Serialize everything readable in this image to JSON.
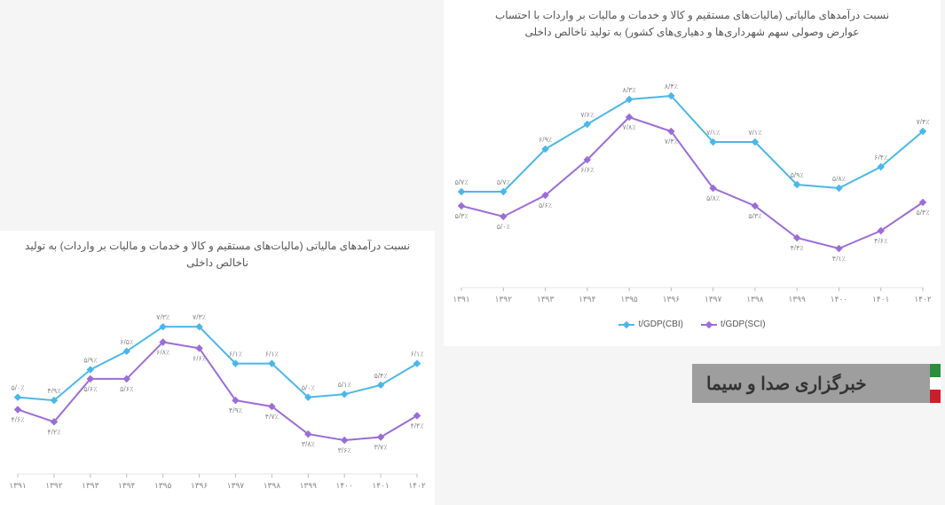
{
  "chart_right": {
    "title_line1": "نسبت درآمدهای مالیاتی (مالیات‌های مستقیم و کالا و خدمات و مالیات بر واردات با احتساب",
    "title_line2": "عوارض وصولی سهم شهرداری‌ها و دهیاری‌های کشور) به تولید ناخالص داخلی",
    "type": "line",
    "categories": [
      "۱۳۹۱",
      "۱۳۹۲",
      "۱۳۹۳",
      "۱۳۹۴",
      "۱۳۹۵",
      "۱۳۹۶",
      "۱۳۹۷",
      "۱۳۹۸",
      "۱۳۹۹",
      "۱۴۰۰",
      "۱۴۰۱",
      "۱۴۰۲"
    ],
    "series": [
      {
        "name": "t/GDP(CBI)",
        "color": "#4bb7e8",
        "values": [
          5.7,
          5.7,
          6.9,
          7.6,
          8.3,
          8.4,
          7.1,
          7.1,
          5.9,
          5.8,
          6.4,
          7.4
        ],
        "labels": [
          "۵/۷٪",
          "۵/۷٪",
          "۶/۹٪",
          "۷/۶٪",
          "۸/۳٪",
          "۸/۴٪",
          "۷/۱٪",
          "۷/۱٪",
          "۵/۹٪",
          "۵/۸٪",
          "۶/۴٪",
          "۷/۴٪"
        ]
      },
      {
        "name": "t/GDP(SCI)",
        "color": "#9b6dd7",
        "values": [
          5.3,
          5.0,
          5.6,
          6.6,
          7.8,
          7.4,
          5.8,
          5.3,
          4.4,
          4.1,
          4.6,
          5.4
        ],
        "labels": [
          "۵/۳٪",
          "۵/۰٪",
          "۵/۶٪",
          "۶/۶٪",
          "۷/۸٪",
          "۷/۴٪",
          "۵/۸٪",
          "۵/۳٪",
          "۴/۴٪",
          "۴/۱٪",
          "۴/۶٪",
          "۵/۴٪"
        ]
      }
    ],
    "ylim": [
      3,
      9
    ],
    "legend": [
      {
        "label": "t/GDP(CBI)",
        "color": "#4bb7e8"
      },
      {
        "label": "t/GDP(SCI)",
        "color": "#9b6dd7"
      }
    ],
    "background": "#ffffff",
    "grid_color": "#e6e6e6"
  },
  "chart_left": {
    "title_line1": "نسبت درآمدهای مالیاتی (مالیات‌های مستقیم و کالا و خدمات و مالیات بر واردات) به تولید",
    "title_line2": "ناخالص داخلی",
    "type": "line",
    "categories": [
      "۱۳۹۱",
      "۱۳۹۲",
      "۱۳۹۳",
      "۱۳۹۴",
      "۱۳۹۵",
      "۱۳۹۶",
      "۱۳۹۷",
      "۱۳۹۸",
      "۱۳۹۹",
      "۱۴۰۰",
      "۱۴۰۱",
      "۱۴۰۲"
    ],
    "series": [
      {
        "name": "t/GDP(CBI)",
        "color": "#4bb7e8",
        "values": [
          5.0,
          4.9,
          5.9,
          6.5,
          7.3,
          7.3,
          6.1,
          6.1,
          5.0,
          5.1,
          5.4,
          6.1
        ],
        "labels": [
          "۵/۰٪",
          "۴/۹٪",
          "۵/۹٪",
          "۶/۵٪",
          "۷/۳٪",
          "۷/۳٪",
          "۶/۱٪",
          "۶/۱٪",
          "۵/۰٪",
          "۵/۱٪",
          "۵/۴٪",
          "۶/۱٪"
        ]
      },
      {
        "name": "t/GDP(SCI)",
        "color": "#9b6dd7",
        "values": [
          4.6,
          4.2,
          5.6,
          5.6,
          6.8,
          6.6,
          4.9,
          4.7,
          3.8,
          3.6,
          3.7,
          4.4
        ],
        "labels": [
          "۴/۶٪",
          "۴/۲٪",
          "۵/۶٪",
          "۵/۶٪",
          "۶/۸٪",
          "۶/۶٪",
          "۴/۹٪",
          "۴/۷٪",
          "۳/۸٪",
          "۳/۶٪",
          "۳/۷٪",
          "۴/۴٪"
        ]
      }
    ],
    "ylim": [
      2.5,
      8
    ],
    "background": "#ffffff",
    "grid_color": "#e6e6e6"
  },
  "news_badge": {
    "text": "خبرگزاری صدا و سیما",
    "bg": "#9e9e9e",
    "flag_colors": [
      "#2a8f3c",
      "#ffffff",
      "#c8202b"
    ]
  }
}
